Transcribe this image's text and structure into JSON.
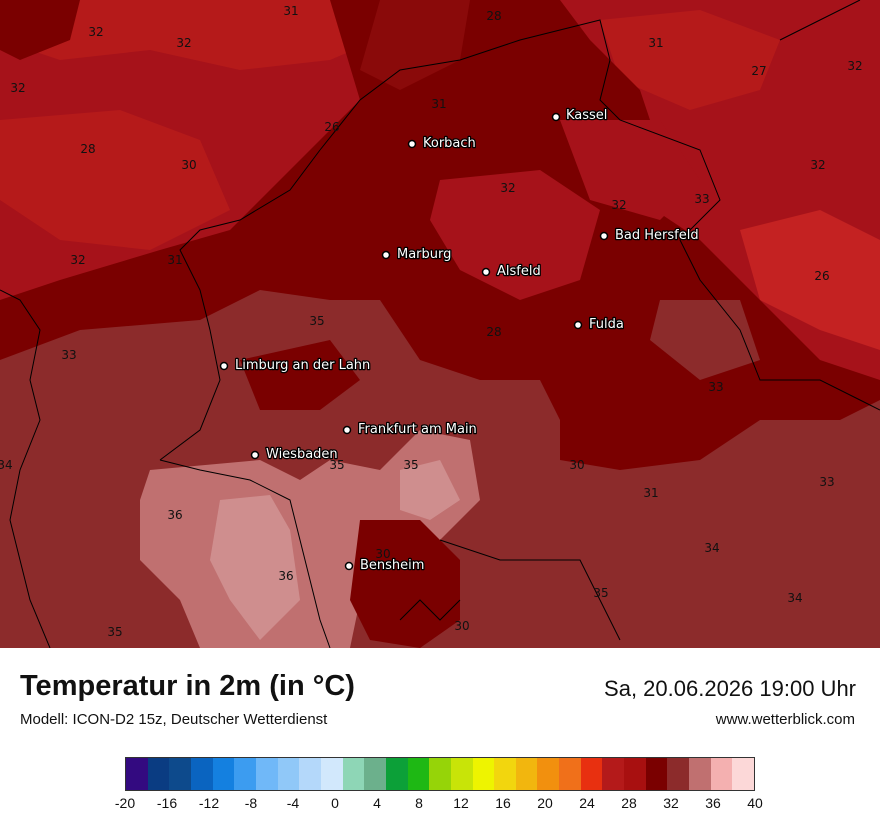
{
  "title": "Temperatur in 2m (in °C)",
  "model": "Modell: ICON-D2 15z, Deutscher Wetterdienst",
  "datetime": "Sa, 20.06.2026 19:00 Uhr",
  "website": "www.wetterblick.com",
  "colors": {
    "t26_28": "#b51a1a",
    "t28_30": "#a6121a",
    "t30_32": "#7a0000",
    "t32_34": "#8c2b2b",
    "t34_36": "#c07070",
    "t36_38": "#cf8e8e",
    "border": "#000000"
  },
  "cities": [
    {
      "name": "Kassel"
    },
    {
      "name": "Korbach"
    },
    {
      "name": "Bad Hersfeld"
    },
    {
      "name": "Marburg"
    },
    {
      "name": "Alsfeld"
    },
    {
      "name": "Fulda"
    },
    {
      "name": "Limburg an der Lahn"
    },
    {
      "name": "Frankfurt am Main"
    },
    {
      "name": "Wiesbaden"
    },
    {
      "name": "Bensheim"
    }
  ],
  "isolabels": [
    "31",
    "28",
    "32",
    "32",
    "32",
    "31",
    "27",
    "32",
    "31",
    "26",
    "28",
    "30",
    "32",
    "32",
    "32",
    "31",
    "32",
    "26",
    "35",
    "28",
    "33",
    "33",
    "33",
    "34",
    "35",
    "35",
    "30",
    "31",
    "33",
    "36",
    "30",
    "34",
    "36",
    "35",
    "34",
    "35",
    "30"
  ],
  "legend": {
    "colors": [
      "#330a80",
      "#0a3c82",
      "#0d4a8c",
      "#0a64c0",
      "#1480e0",
      "#3c9cf0",
      "#70b8f8",
      "#90c8f8",
      "#b4d8fa",
      "#d2e8fc",
      "#8ed6b6",
      "#6cb08c",
      "#0ca038",
      "#1eb814",
      "#96d408",
      "#c8e408",
      "#eef400",
      "#f2d60e",
      "#f2b60e",
      "#f2900e",
      "#f0701a",
      "#e83010",
      "#b41a1a",
      "#a81010",
      "#7a0000",
      "#8c2b2b",
      "#c07070",
      "#f4b0b0",
      "#fcd8d8"
    ],
    "ticks": [
      "-20",
      "-16",
      "-12",
      "-8",
      "-4",
      "0",
      "4",
      "8",
      "12",
      "16",
      "20",
      "24",
      "28",
      "32",
      "36",
      "40"
    ]
  }
}
